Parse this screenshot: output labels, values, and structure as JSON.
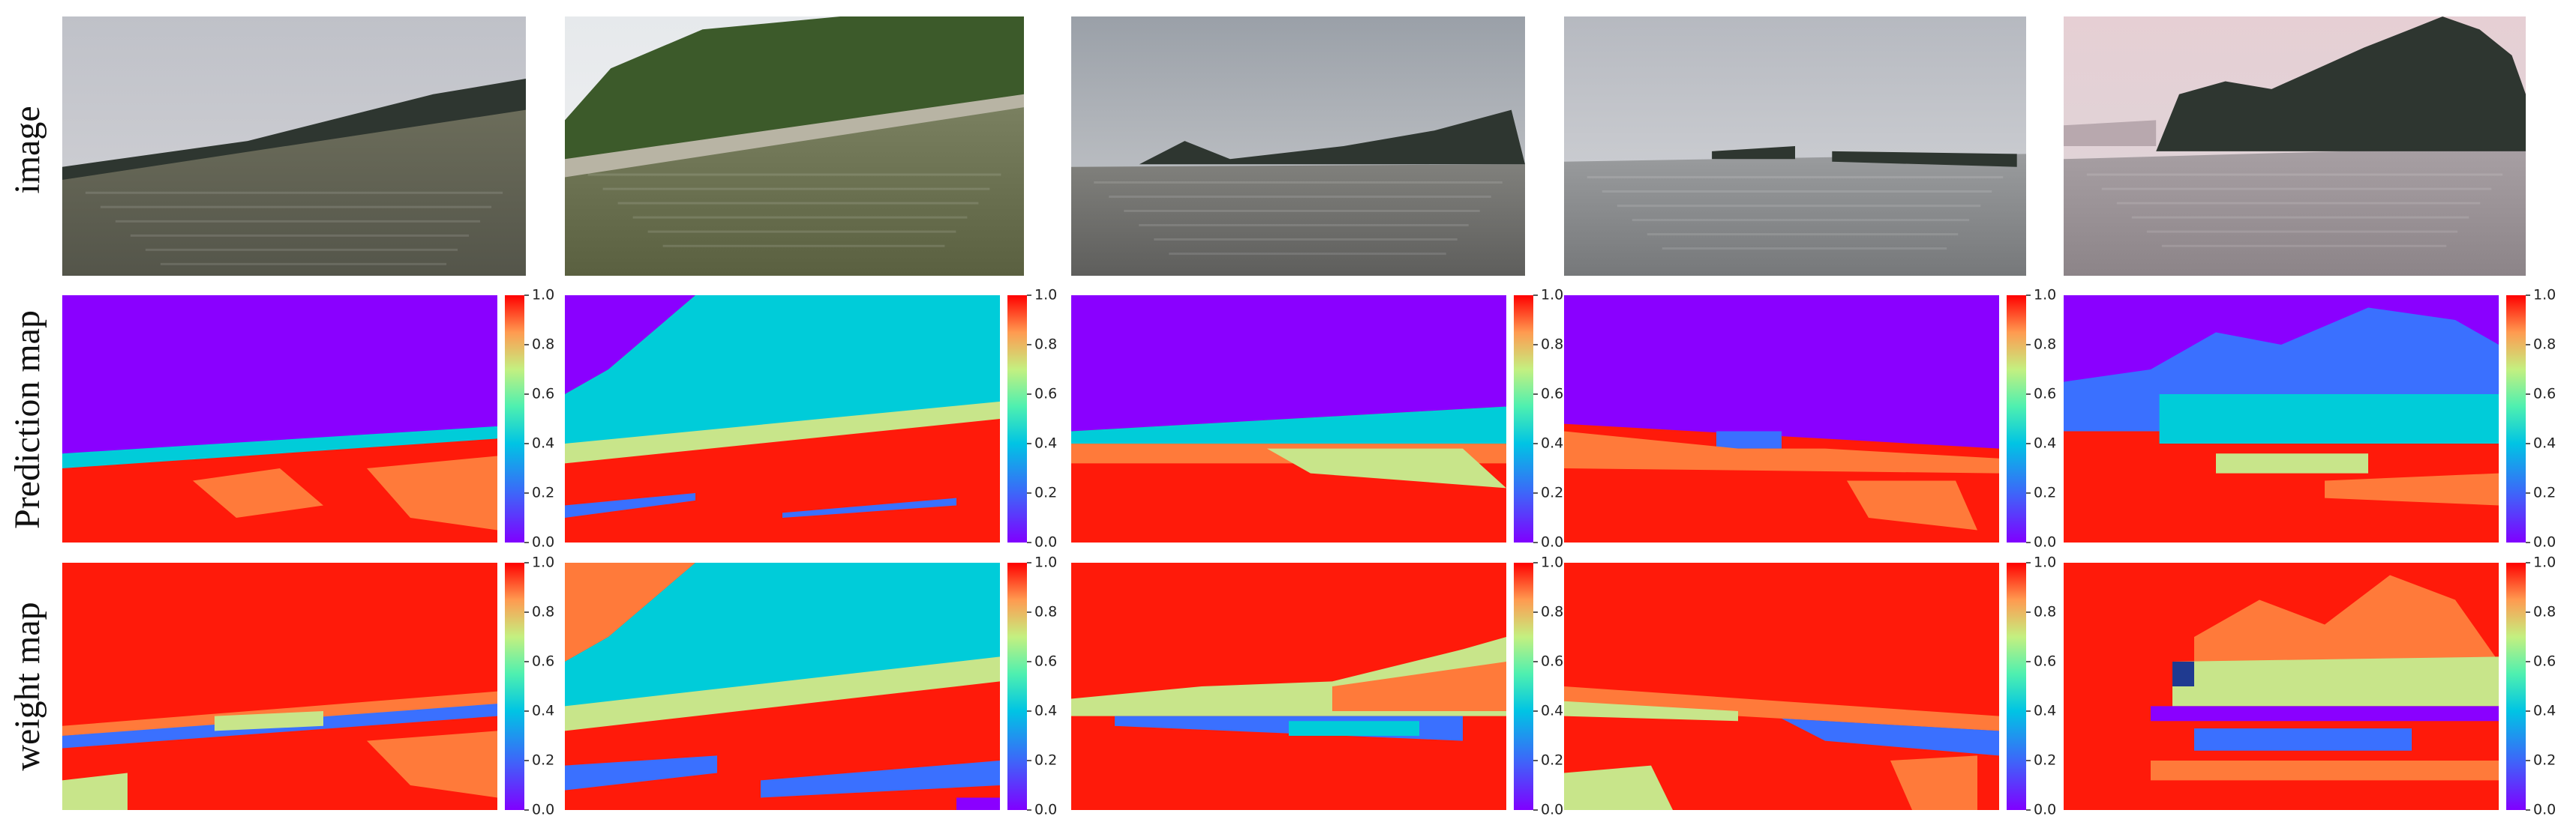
{
  "row_labels": [
    "image",
    "Prediction map",
    "weight map"
  ],
  "colorbar_ticks": [
    "0.0",
    "0.2",
    "0.4",
    "0.6",
    "0.8",
    "1.0"
  ]
}
